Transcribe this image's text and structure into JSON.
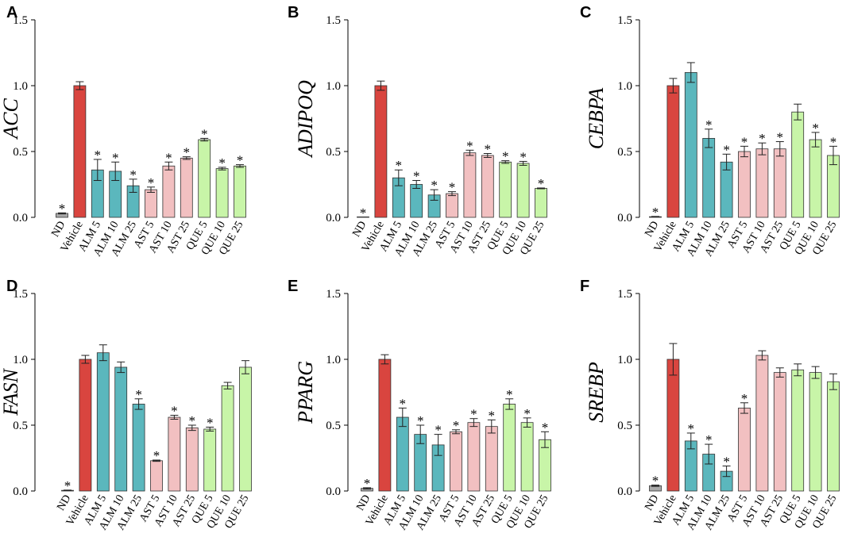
{
  "colors": {
    "ND": "#a9a9a9",
    "Vehicle": "#d9453f",
    "ALM": "#5bb7bd",
    "AST": "#f2c0c1",
    "QUE": "#c8f5a8"
  },
  "chart_data": [
    {
      "panel": "A",
      "type": "bar",
      "ylabel": "ACC",
      "ylim": [
        0,
        1.5
      ],
      "yticks": [
        "0.0",
        "0.5",
        "1.0",
        "1.5"
      ],
      "categories": [
        "ND",
        "Vehicle",
        "ALM 5",
        "ALM 10",
        "ALM 25",
        "AST 5",
        "AST 10",
        "AST 25",
        "QUE 5",
        "QUE 10",
        "QUE 25"
      ],
      "groups": [
        "ND",
        "Vehicle",
        "ALM",
        "ALM",
        "ALM",
        "AST",
        "AST",
        "AST",
        "QUE",
        "QUE",
        "QUE"
      ],
      "values": [
        0.03,
        1.0,
        0.36,
        0.35,
        0.24,
        0.21,
        0.39,
        0.45,
        0.59,
        0.37,
        0.39
      ],
      "errors": [
        0.004,
        0.03,
        0.08,
        0.07,
        0.05,
        0.02,
        0.03,
        0.01,
        0.01,
        0.01,
        0.01
      ],
      "significant": [
        "*",
        "",
        "*",
        "*",
        "*",
        "*",
        "*",
        "*",
        "*",
        "*",
        "*"
      ]
    },
    {
      "panel": "B",
      "type": "bar",
      "ylabel": "ADIPOQ",
      "ylim": [
        0,
        1.5
      ],
      "yticks": [
        "0.0",
        "0.5",
        "1.0",
        "1.5"
      ],
      "categories": [
        "ND",
        "Vehicle",
        "ALM 5",
        "ALM 10",
        "ALM 25",
        "AST 5",
        "AST 10",
        "AST 25",
        "QUE 5",
        "QUE 10",
        "QUE 25"
      ],
      "groups": [
        "ND",
        "Vehicle",
        "ALM",
        "ALM",
        "ALM",
        "AST",
        "AST",
        "AST",
        "QUE",
        "QUE",
        "QUE"
      ],
      "values": [
        0.0,
        1.0,
        0.3,
        0.25,
        0.17,
        0.18,
        0.49,
        0.47,
        0.42,
        0.41,
        0.22
      ],
      "errors": [
        0.0,
        0.035,
        0.06,
        0.03,
        0.04,
        0.015,
        0.02,
        0.015,
        0.01,
        0.015,
        0.003
      ],
      "significant": [
        "*",
        "",
        "*",
        "*",
        "*",
        "*",
        "*",
        "*",
        "*",
        "*",
        "*"
      ]
    },
    {
      "panel": "C",
      "type": "bar",
      "ylabel": "CEBPA",
      "ylim": [
        0,
        1.5
      ],
      "yticks": [
        "0.0",
        "0.5",
        "1.0",
        "1.5"
      ],
      "categories": [
        "ND",
        "Vehicle",
        "ALM 5",
        "ALM 10",
        "ALM 25",
        "AST 5",
        "AST 10",
        "AST 25",
        "QUE 5",
        "QUE 10",
        "QUE 25"
      ],
      "groups": [
        "ND",
        "Vehicle",
        "ALM",
        "ALM",
        "ALM",
        "AST",
        "AST",
        "AST",
        "QUE",
        "QUE",
        "QUE"
      ],
      "values": [
        0.005,
        1.0,
        1.1,
        0.6,
        0.42,
        0.5,
        0.52,
        0.52,
        0.8,
        0.59,
        0.47
      ],
      "errors": [
        0.002,
        0.055,
        0.075,
        0.07,
        0.06,
        0.04,
        0.045,
        0.055,
        0.06,
        0.055,
        0.07
      ],
      "significant": [
        "*",
        "",
        "",
        "*",
        "*",
        "*",
        "*",
        "*",
        "",
        "*",
        "*"
      ]
    },
    {
      "panel": "D",
      "type": "bar",
      "ylabel": "FASN",
      "ylim": [
        0,
        1.5
      ],
      "yticks": [
        "0.0",
        "0.5",
        "1.0",
        "1.5"
      ],
      "categories": [
        "ND",
        "Vehicle",
        "ALM 5",
        "ALM 10",
        "ALM 25",
        "AST 5",
        "AST 10",
        "AST 25",
        "QUE 5",
        "QUE 10",
        "QUE 25"
      ],
      "groups": [
        "ND",
        "Vehicle",
        "ALM",
        "ALM",
        "ALM",
        "AST",
        "AST",
        "AST",
        "QUE",
        "QUE",
        "QUE"
      ],
      "values": [
        0.005,
        1.0,
        1.05,
        0.94,
        0.66,
        0.23,
        0.56,
        0.48,
        0.47,
        0.8,
        0.94
      ],
      "errors": [
        0.002,
        0.03,
        0.06,
        0.04,
        0.04,
        0.005,
        0.015,
        0.02,
        0.015,
        0.025,
        0.05
      ],
      "significant": [
        "*",
        "",
        "",
        "",
        "*",
        "*",
        "*",
        "*",
        "*",
        "",
        ""
      ]
    },
    {
      "panel": "E",
      "type": "bar",
      "ylabel": "PPARG",
      "ylim": [
        0,
        1.5
      ],
      "yticks": [
        "0.0",
        "0.5",
        "1.0",
        "1.5"
      ],
      "categories": [
        "ND",
        "Vehicle",
        "ALM 5",
        "ALM 10",
        "ALM 25",
        "AST 5",
        "AST 10",
        "AST 25",
        "QUE 5",
        "QUE 10",
        "QUE 25"
      ],
      "groups": [
        "ND",
        "Vehicle",
        "ALM",
        "ALM",
        "ALM",
        "AST",
        "AST",
        "AST",
        "QUE",
        "QUE",
        "QUE"
      ],
      "values": [
        0.02,
        1.0,
        0.56,
        0.43,
        0.35,
        0.45,
        0.52,
        0.49,
        0.66,
        0.52,
        0.39
      ],
      "errors": [
        0.005,
        0.035,
        0.07,
        0.07,
        0.08,
        0.015,
        0.03,
        0.05,
        0.04,
        0.035,
        0.06
      ],
      "significant": [
        "*",
        "",
        "*",
        "*",
        "*",
        "*",
        "*",
        "*",
        "*",
        "*",
        "*"
      ]
    },
    {
      "panel": "F",
      "type": "bar",
      "ylabel": "SREBP",
      "ylim": [
        0,
        1.5
      ],
      "yticks": [
        "0.0",
        "0.5",
        "1.0",
        "1.5"
      ],
      "categories": [
        "ND",
        "Vehicle",
        "ALM 5",
        "ALM 10",
        "ALM 25",
        "AST 5",
        "AST 10",
        "AST 25",
        "QUE 5",
        "QUE 10",
        "QUE 25"
      ],
      "groups": [
        "ND",
        "Vehicle",
        "ALM",
        "ALM",
        "ALM",
        "AST",
        "AST",
        "AST",
        "QUE",
        "QUE",
        "QUE"
      ],
      "values": [
        0.04,
        1.0,
        0.38,
        0.28,
        0.15,
        0.63,
        1.03,
        0.9,
        0.92,
        0.9,
        0.83
      ],
      "errors": [
        0.005,
        0.12,
        0.06,
        0.075,
        0.04,
        0.04,
        0.035,
        0.035,
        0.045,
        0.045,
        0.06
      ],
      "significant": [
        "*",
        "",
        "*",
        "*",
        "*",
        "*",
        "",
        "",
        "",
        "",
        ""
      ]
    }
  ]
}
